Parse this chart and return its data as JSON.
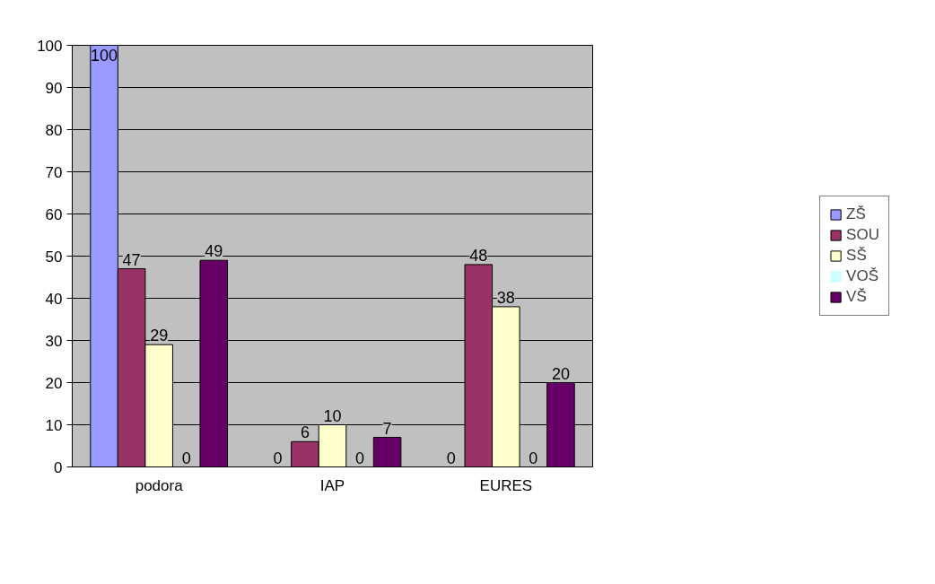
{
  "chart_data": {
    "type": "bar",
    "categories": [
      "podora",
      "IAP",
      "EURES"
    ],
    "series": [
      {
        "name": "ZŠ",
        "color": "#9999ff",
        "values": [
          100,
          0,
          0
        ]
      },
      {
        "name": "SOU",
        "color": "#993366",
        "values": [
          47,
          6,
          48
        ]
      },
      {
        "name": "SŠ",
        "color": "#ffffcc",
        "values": [
          29,
          10,
          38
        ]
      },
      {
        "name": "VOŠ",
        "color": "#ccffff",
        "values": [
          0,
          0,
          0
        ]
      },
      {
        "name": "VŠ",
        "color": "#660066",
        "values": [
          49,
          7,
          20
        ]
      }
    ],
    "ylim": [
      0,
      100
    ],
    "yticks": [
      0,
      10,
      20,
      30,
      40,
      50,
      60,
      70,
      80,
      90,
      100
    ],
    "grid": "y",
    "legend": "right",
    "data_labels": true
  }
}
